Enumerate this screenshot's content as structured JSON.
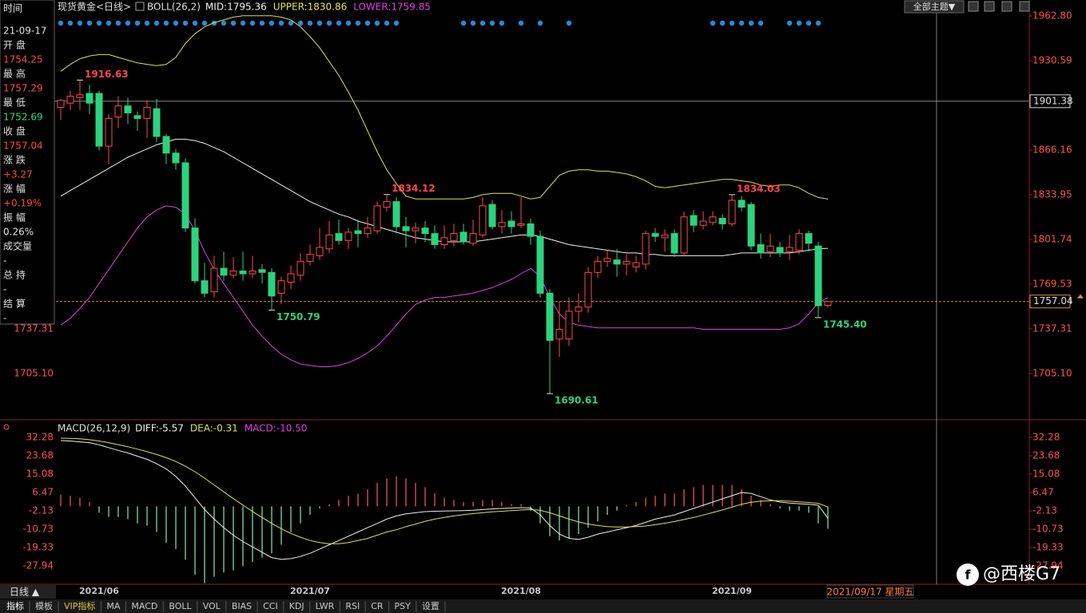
{
  "header": {
    "theme": "全部主题▼"
  },
  "sidebar": {
    "time_label": "时间",
    "time_value": "21-09-17",
    "items": [
      {
        "label": "开 盘",
        "value": "1754.25",
        "color": "#ff4848"
      },
      {
        "label": "最 高",
        "value": "1757.29",
        "color": "#ff4848"
      },
      {
        "label": "最 低",
        "value": "1752.69",
        "color": "#3cd67e"
      },
      {
        "label": "收 盘",
        "value": "1757.04",
        "color": "#ff4848"
      },
      {
        "label": "涨 跌",
        "value": "+3.27",
        "color": "#ff4848"
      },
      {
        "label": "涨 幅",
        "value": "+0.19%",
        "color": "#ff4848"
      },
      {
        "label": "振 幅",
        "value": "0.26%",
        "color": "#e0e0e0"
      },
      {
        "label": "成交量",
        "value": "-",
        "color": "#e0e0e0"
      },
      {
        "label": "总 持",
        "value": "-",
        "color": "#e0e0e0"
      },
      {
        "label": "结 算",
        "value": "-",
        "color": "#e0e0e0"
      }
    ]
  },
  "chart_data": [
    {
      "type": "candlestick",
      "title": "现货黄金<日线>",
      "indicator": "BOLL(26,2)",
      "categories": [
        null,
        null,
        null,
        null,
        "2021/06",
        null,
        null,
        null,
        null,
        null,
        null,
        null,
        null,
        null,
        null,
        null,
        null,
        null,
        null,
        null,
        null,
        null,
        null,
        null,
        null,
        null,
        "2021/07",
        null,
        null,
        null,
        null,
        null,
        null,
        null,
        null,
        null,
        null,
        null,
        null,
        null,
        null,
        null,
        null,
        null,
        null,
        null,
        null,
        null,
        "2021/08",
        null,
        null,
        null,
        null,
        null,
        null,
        null,
        null,
        null,
        null,
        null,
        null,
        null,
        null,
        null,
        null,
        null,
        null,
        null,
        null,
        null,
        "2021/09",
        null,
        null,
        null,
        null,
        null,
        null,
        null,
        null,
        null,
        null
      ],
      "open": [
        1897,
        1900,
        1904,
        1907,
        1907,
        1869,
        1890,
        1898,
        1891,
        1889,
        1896,
        1876,
        1864,
        1857,
        1810,
        1772,
        1764,
        1781,
        1776,
        1779,
        1777,
        1780,
        1778,
        1763,
        1771,
        1776,
        1786,
        1790,
        1795,
        1806,
        1801,
        1808,
        1806,
        1808,
        1825,
        1829,
        1811,
        1808,
        1810,
        1806,
        1798,
        1801,
        1807,
        1799,
        1805,
        1827,
        1811,
        1815,
        1812,
        1813,
        1804,
        1763,
        1730,
        1730,
        1750,
        1753,
        1778,
        1786,
        1787,
        1784,
        1782,
        1784,
        1806,
        1803,
        1806,
        1792,
        1819,
        1812,
        1814,
        1817,
        1813,
        1830,
        1827,
        1798,
        1793,
        1796,
        1793,
        1794,
        1806,
        1797,
        1754.25
      ],
      "high": [
        1903,
        1909,
        1916.63,
        1913,
        1909,
        1892,
        1905,
        1904,
        1894,
        1902,
        1903,
        1878,
        1867,
        1860,
        1817,
        1785,
        1790,
        1793,
        1789,
        1793,
        1790,
        1784,
        1781,
        1775,
        1783,
        1792,
        1798,
        1810,
        1815,
        1816,
        1810,
        1816,
        1818,
        1829,
        1834.12,
        1832,
        1818,
        1814,
        1815,
        1812,
        1812,
        1813,
        1813,
        1816,
        1832,
        1830,
        1823,
        1822,
        1832,
        1817,
        1808,
        1766,
        1757,
        1760,
        1763,
        1782,
        1790,
        1794,
        1795,
        1791,
        1790,
        1808,
        1810,
        1809,
        1809,
        1822,
        1823,
        1822,
        1822,
        1820,
        1834.03,
        1833,
        1829,
        1806,
        1806,
        1800,
        1805,
        1809,
        1808,
        1800,
        1757.29
      ],
      "low": [
        1888,
        1895,
        1895,
        1892,
        1866,
        1856,
        1882,
        1885,
        1880,
        1875,
        1872,
        1856,
        1852,
        1807,
        1770,
        1760,
        1760,
        1772,
        1774,
        1772,
        1774,
        1770,
        1750.79,
        1755,
        1766,
        1772,
        1783,
        1787,
        1792,
        1798,
        1795,
        1796,
        1803,
        1806,
        1822,
        1806,
        1796,
        1799,
        1800,
        1795,
        1795,
        1797,
        1798,
        1797,
        1803,
        1809,
        1806,
        1806,
        1810,
        1798,
        1760,
        1690.61,
        1717,
        1725,
        1742,
        1749,
        1774,
        1782,
        1775,
        1776,
        1778,
        1780,
        1800,
        1793,
        1789,
        1790,
        1807,
        1809,
        1812,
        1809,
        1811,
        1822,
        1794,
        1788,
        1789,
        1789,
        1787,
        1791,
        1793,
        1745.4,
        1752.69
      ],
      "close": [
        1902,
        1905,
        1906,
        1900,
        1869,
        1889,
        1898,
        1893,
        1889,
        1897,
        1876,
        1864,
        1857,
        1810,
        1772,
        1763,
        1781,
        1776,
        1779,
        1777,
        1779,
        1778,
        1761,
        1772,
        1777,
        1786,
        1791,
        1796,
        1805,
        1801,
        1807,
        1806,
        1810,
        1826,
        1829,
        1811,
        1808,
        1810,
        1806,
        1798,
        1803,
        1806,
        1800,
        1806,
        1826,
        1811,
        1814,
        1811,
        1813,
        1804,
        1763,
        1729,
        1737,
        1750,
        1753,
        1778,
        1786,
        1788,
        1784,
        1786,
        1785,
        1806,
        1804,
        1805,
        1792,
        1818,
        1812,
        1815,
        1818,
        1813,
        1830,
        1825,
        1797,
        1792,
        1797,
        1792,
        1796,
        1806,
        1799,
        1754,
        1757.04
      ],
      "series": [
        {
          "name": "MID:1795.36",
          "color": "#f0f0f0",
          "values": [
            1833,
            1837,
            1841,
            1845,
            1849,
            1853,
            1857,
            1861,
            1864,
            1867,
            1870,
            1872,
            1874,
            1874,
            1873,
            1871,
            1868,
            1865,
            1861,
            1857,
            1853,
            1849,
            1845,
            1841,
            1837,
            1833,
            1829,
            1826,
            1823,
            1820,
            1818,
            1815,
            1813,
            1811,
            1809,
            1807,
            1805,
            1803,
            1802,
            1801,
            1800,
            1800,
            1800,
            1800,
            1801,
            1802,
            1803,
            1804,
            1805,
            1805,
            1804,
            1802,
            1800,
            1798,
            1797,
            1796,
            1795,
            1794,
            1793,
            1792,
            1792,
            1791,
            1791,
            1790,
            1790,
            1790,
            1790,
            1790,
            1790,
            1790,
            1791,
            1792,
            1792,
            1792,
            1792,
            1792,
            1792,
            1793,
            1794,
            1795,
            1795.36
          ]
        },
        {
          "name": "UPPER:1830.86",
          "color": "#e6e04a",
          "values": [
            1923,
            1928,
            1932,
            1934,
            1935,
            1935,
            1933,
            1931,
            1929,
            1928,
            1927,
            1928,
            1933,
            1943,
            1950,
            1955,
            1958,
            1960,
            1962,
            1963,
            1963,
            1963,
            1963,
            1962,
            1960,
            1955,
            1948,
            1940,
            1930,
            1920,
            1908,
            1895,
            1880,
            1865,
            1852,
            1842,
            1833,
            1831,
            1831,
            1831,
            1831,
            1831,
            1831,
            1832,
            1834,
            1835,
            1835,
            1835,
            1833,
            1831,
            1832,
            1840,
            1848,
            1851,
            1852,
            1852,
            1851,
            1851,
            1850,
            1849,
            1847,
            1844,
            1840,
            1839,
            1840,
            1841,
            1842,
            1843,
            1844,
            1845,
            1845,
            1844,
            1843,
            1841,
            1840,
            1841,
            1841,
            1839,
            1835,
            1832,
            1830.86
          ]
        },
        {
          "name": "LOWER:1759.85",
          "color": "#e040e0",
          "values": [
            1740,
            1745,
            1752,
            1760,
            1770,
            1780,
            1790,
            1800,
            1810,
            1818,
            1823,
            1826,
            1825,
            1820,
            1808,
            1793,
            1780,
            1770,
            1760,
            1750,
            1740,
            1732,
            1725,
            1719,
            1715,
            1712,
            1711,
            1710,
            1710,
            1711,
            1713,
            1716,
            1720,
            1725,
            1732,
            1740,
            1748,
            1755,
            1758,
            1760,
            1760,
            1761,
            1762,
            1763,
            1765,
            1767,
            1770,
            1773,
            1777,
            1781,
            1775,
            1760,
            1748,
            1742,
            1740,
            1739,
            1738,
            1738,
            1738,
            1738,
            1738,
            1738,
            1738,
            1738,
            1738,
            1738,
            1738,
            1737,
            1737,
            1737,
            1737,
            1737,
            1737,
            1737,
            1737,
            1737,
            1738,
            1741,
            1748,
            1756,
            1759.85
          ]
        }
      ],
      "ylim": [
        1672.3,
        1966.3
      ],
      "yticks": [
        {
          "value": 1962.8,
          "label": "1962.80"
        },
        1930.59,
        1866.16,
        1833.95,
        1801.74,
        1769.53,
        1737.31,
        {
          "value": 1705.1,
          "label": "1705.10"
        }
      ],
      "up_color": "#ff4848",
      "down_color": "#2ed27e",
      "annotations": [
        {
          "value": 1916.63,
          "label": "1916.63"
        },
        {
          "value": 1834.12,
          "label": "1834.12"
        },
        {
          "value": 1750.79,
          "label": "1750.79"
        },
        {
          "value": 1690.61,
          "label": "1690.61"
        },
        {
          "value": 1834.03,
          "label": "1834.03"
        },
        {
          "value": 1745.4,
          "label": "1745.40"
        }
      ],
      "last_price": 1757.04,
      "crosshair": 1901.38
    },
    {
      "type": "macd",
      "title": "MACD(26,12,9)",
      "series": [
        {
          "name": "DIFF:-5.57",
          "color": "#f0f0f0",
          "values": [
            30.8,
            30.6,
            30.2,
            29.8,
            28.8,
            27.5,
            26.2,
            25.0,
            23.5,
            22.0,
            20.0,
            17.5,
            14.0,
            9.5,
            4.0,
            -1.5,
            -6.0,
            -10.0,
            -13.5,
            -16.5,
            -19.0,
            -21.5,
            -24.0,
            -24.8,
            -24.5,
            -23.5,
            -22.0,
            -20.0,
            -18.0,
            -16.0,
            -14.0,
            -12.0,
            -10.0,
            -8.0,
            -6.0,
            -4.5,
            -3.5,
            -3.0,
            -2.5,
            -2.3,
            -2.2,
            -2.1,
            -2.0,
            -1.8,
            -1.5,
            -1.2,
            -1.0,
            -0.8,
            -0.6,
            -0.8,
            -4.0,
            -9.0,
            -13.0,
            -15.0,
            -15.5,
            -14.5,
            -13.0,
            -12.0,
            -11.0,
            -10.0,
            -9.0,
            -7.5,
            -6.0,
            -5.0,
            -4.0,
            -2.5,
            -1.0,
            0.5,
            2.0,
            3.5,
            5.0,
            6.5,
            6.0,
            4.5,
            3.0,
            2.0,
            1.5,
            1.2,
            1.0,
            0.5,
            -5.57
          ]
        },
        {
          "name": "DEA:-0.31",
          "color": "#e6e04a",
          "values": [
            31.9,
            31.8,
            31.6,
            31.2,
            30.6,
            29.8,
            28.9,
            27.9,
            26.8,
            25.6,
            24.3,
            22.8,
            21.0,
            18.8,
            16.2,
            13.2,
            10.0,
            6.8,
            3.6,
            0.6,
            -2.4,
            -5.2,
            -8.0,
            -10.5,
            -12.7,
            -14.5,
            -16.0,
            -17.0,
            -17.5,
            -17.5,
            -17.0,
            -16.0,
            -15.0,
            -13.5,
            -12.0,
            -11.0,
            -9.5,
            -8.3,
            -7.0,
            -6.0,
            -5.2,
            -4.5,
            -3.9,
            -3.4,
            -3.0,
            -2.6,
            -2.3,
            -2.0,
            -1.7,
            -1.5,
            -1.9,
            -3.0,
            -4.5,
            -6.0,
            -7.3,
            -8.3,
            -9.0,
            -9.5,
            -9.7,
            -9.7,
            -9.5,
            -9.2,
            -8.6,
            -7.9,
            -7.1,
            -6.2,
            -5.2,
            -4.1,
            -2.9,
            -1.7,
            -0.4,
            1.0,
            1.9,
            2.4,
            2.6,
            2.6,
            2.4,
            2.1,
            1.8,
            1.4,
            -0.31
          ]
        },
        {
          "name": "MACD:-10.50",
          "color": "#e040e0",
          "values": [
            5.4,
            5,
            4,
            2,
            -3,
            -5,
            -5,
            -6,
            -8,
            -9,
            -12,
            -17,
            -20,
            -25,
            -32,
            -36,
            -33,
            -31,
            -30,
            -28,
            -26,
            -24,
            -22,
            -18,
            -12,
            -8,
            -4,
            -1,
            1,
            3,
            5,
            6,
            8,
            11,
            13,
            14,
            13,
            11,
            9,
            6,
            4,
            3,
            2,
            2,
            3,
            3,
            2,
            1,
            1,
            -2,
            -8,
            -14,
            -16,
            -15,
            -13,
            -10,
            -7,
            -4,
            -2,
            0.5,
            2,
            4,
            5,
            6,
            6,
            8,
            9,
            10,
            10,
            10,
            10,
            8,
            5,
            3,
            1,
            -1,
            -2,
            -2,
            -3,
            -8,
            -10.5
          ]
        }
      ],
      "ylim": [
        -36.5,
        34.9
      ],
      "yticks": [
        32.28,
        23.68,
        15.08,
        6.47,
        -2.13,
        -10.73,
        -19.33,
        -27.94
      ],
      "up_color": "#ff5a5a",
      "down_color": "#86f0a4"
    }
  ],
  "date_axis": {
    "period": "日线 ▲",
    "cursor_date": "2021/09/17 星期五"
  },
  "toolbar": [
    "指标",
    "模板",
    "VIP指标",
    "MA",
    "MACD",
    "BOLL",
    "VOL",
    "BIAS",
    "CCI",
    "KDJ",
    "LWR",
    "RSI",
    "CR",
    "PSY",
    "设置"
  ],
  "watermark": "@西楼G7"
}
